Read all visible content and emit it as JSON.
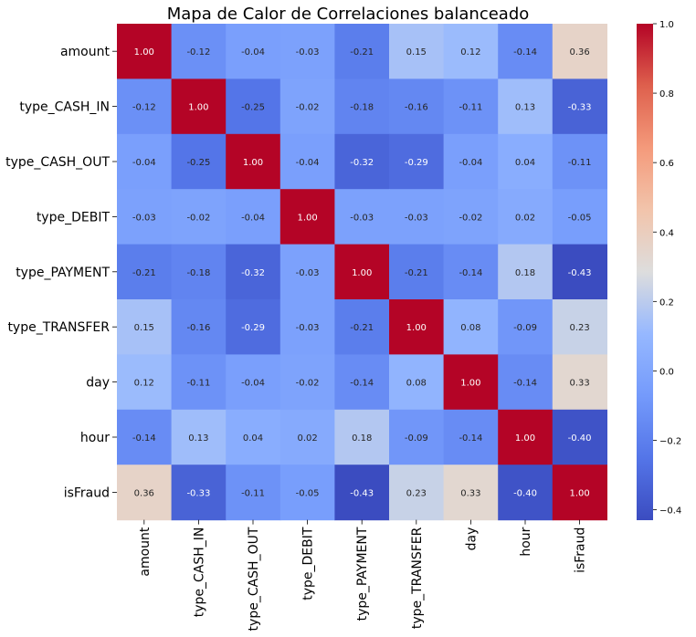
{
  "chart_data": {
    "type": "heatmap",
    "title": "Mapa de Calor de Correlaciones balanceado",
    "labels": [
      "amount",
      "type_CASH_IN",
      "type_CASH_OUT",
      "type_DEBIT",
      "type_PAYMENT",
      "type_TRANSFER",
      "day",
      "hour",
      "isFraud"
    ],
    "matrix": [
      [
        1.0,
        -0.12,
        -0.04,
        -0.03,
        -0.21,
        0.15,
        0.12,
        -0.14,
        0.36
      ],
      [
        -0.12,
        1.0,
        -0.25,
        -0.02,
        -0.18,
        -0.16,
        -0.11,
        0.13,
        -0.33
      ],
      [
        -0.04,
        -0.25,
        1.0,
        -0.04,
        -0.32,
        -0.29,
        -0.04,
        0.04,
        -0.11
      ],
      [
        -0.03,
        -0.02,
        -0.04,
        1.0,
        -0.03,
        -0.03,
        -0.02,
        0.02,
        -0.05
      ],
      [
        -0.21,
        -0.18,
        -0.32,
        -0.03,
        1.0,
        -0.21,
        -0.14,
        0.18,
        -0.43
      ],
      [
        0.15,
        -0.16,
        -0.29,
        -0.03,
        -0.21,
        1.0,
        0.08,
        -0.09,
        0.23
      ],
      [
        0.12,
        -0.11,
        -0.04,
        -0.02,
        -0.14,
        0.08,
        1.0,
        -0.14,
        0.33
      ],
      [
        -0.14,
        0.13,
        0.04,
        0.02,
        0.18,
        -0.09,
        -0.14,
        1.0,
        -0.4
      ],
      [
        0.36,
        -0.33,
        -0.11,
        -0.05,
        -0.43,
        0.23,
        0.33,
        -0.4,
        1.0
      ]
    ],
    "colormap": "coolwarm",
    "vmin": -0.43,
    "vmax": 1.0,
    "annotations_format": "2 decimals",
    "colorbar": {
      "ticks": [
        -0.2,
        0.0,
        0.2,
        0.4,
        0.6,
        0.8,
        1.0
      ],
      "tick_labels": [
        "−0.2",
        "0.0",
        "0.2",
        "0.4",
        "0.6",
        "0.8",
        "1.0"
      ],
      "bottom_tick": -0.4,
      "bottom_tick_label": "−0.4"
    }
  }
}
